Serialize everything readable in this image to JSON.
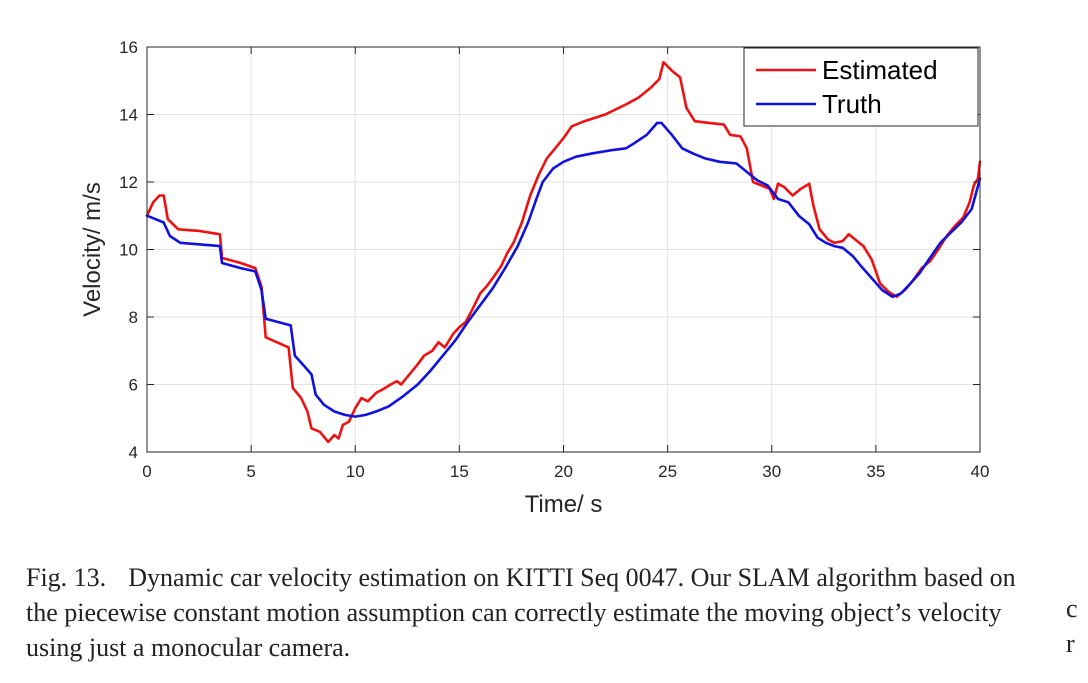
{
  "chart_data": {
    "type": "line",
    "xlabel": "Time/ s",
    "ylabel": "Velocity/ m/s",
    "xlim": [
      0,
      40
    ],
    "ylim": [
      4,
      16
    ],
    "xticks": [
      0,
      5,
      10,
      15,
      20,
      25,
      30,
      35,
      40
    ],
    "yticks": [
      4,
      6,
      8,
      10,
      12,
      14,
      16
    ],
    "grid": true,
    "legend_position": "top-right",
    "series": [
      {
        "name": "Estimated",
        "color": "#ee1111",
        "points": [
          [
            0,
            11.0
          ],
          [
            0.3,
            11.4
          ],
          [
            0.6,
            11.6
          ],
          [
            0.8,
            11.6
          ],
          [
            1.0,
            10.9
          ],
          [
            1.5,
            10.6
          ],
          [
            2.5,
            10.55
          ],
          [
            3.5,
            10.45
          ],
          [
            3.6,
            9.75
          ],
          [
            4.5,
            9.6
          ],
          [
            5.2,
            9.45
          ],
          [
            5.5,
            8.9
          ],
          [
            5.7,
            7.4
          ],
          [
            6.8,
            7.1
          ],
          [
            7.0,
            5.9
          ],
          [
            7.4,
            5.6
          ],
          [
            7.7,
            5.2
          ],
          [
            7.9,
            4.7
          ],
          [
            8.3,
            4.6
          ],
          [
            8.7,
            4.3
          ],
          [
            9.0,
            4.5
          ],
          [
            9.2,
            4.4
          ],
          [
            9.4,
            4.8
          ],
          [
            9.7,
            4.9
          ],
          [
            10.0,
            5.3
          ],
          [
            10.3,
            5.6
          ],
          [
            10.6,
            5.5
          ],
          [
            11.0,
            5.75
          ],
          [
            11.3,
            5.85
          ],
          [
            11.7,
            6.0
          ],
          [
            12.0,
            6.1
          ],
          [
            12.2,
            6.0
          ],
          [
            12.6,
            6.3
          ],
          [
            13.0,
            6.6
          ],
          [
            13.3,
            6.85
          ],
          [
            13.7,
            7.0
          ],
          [
            14.0,
            7.25
          ],
          [
            14.3,
            7.1
          ],
          [
            14.7,
            7.5
          ],
          [
            15.0,
            7.7
          ],
          [
            15.3,
            7.85
          ],
          [
            15.6,
            8.2
          ],
          [
            16.0,
            8.7
          ],
          [
            16.3,
            8.9
          ],
          [
            16.6,
            9.15
          ],
          [
            17.0,
            9.5
          ],
          [
            17.3,
            9.9
          ],
          [
            17.6,
            10.2
          ],
          [
            18.0,
            10.8
          ],
          [
            18.4,
            11.6
          ],
          [
            18.8,
            12.2
          ],
          [
            19.2,
            12.7
          ],
          [
            19.6,
            13.0
          ],
          [
            20.0,
            13.3
          ],
          [
            20.4,
            13.65
          ],
          [
            21.0,
            13.8
          ],
          [
            22.0,
            14.0
          ],
          [
            23.0,
            14.3
          ],
          [
            23.6,
            14.5
          ],
          [
            24.2,
            14.8
          ],
          [
            24.6,
            15.05
          ],
          [
            24.8,
            15.55
          ],
          [
            25.2,
            15.3
          ],
          [
            25.6,
            15.1
          ],
          [
            25.9,
            14.2
          ],
          [
            26.3,
            13.8
          ],
          [
            27.0,
            13.75
          ],
          [
            27.7,
            13.7
          ],
          [
            28.0,
            13.4
          ],
          [
            28.5,
            13.35
          ],
          [
            28.8,
            13.0
          ],
          [
            29.1,
            12.0
          ],
          [
            29.5,
            11.9
          ],
          [
            29.9,
            11.8
          ],
          [
            30.1,
            11.5
          ],
          [
            30.3,
            11.95
          ],
          [
            30.6,
            11.85
          ],
          [
            31.0,
            11.6
          ],
          [
            31.4,
            11.8
          ],
          [
            31.8,
            11.95
          ],
          [
            32.0,
            11.3
          ],
          [
            32.3,
            10.6
          ],
          [
            32.7,
            10.3
          ],
          [
            33.0,
            10.2
          ],
          [
            33.4,
            10.25
          ],
          [
            33.7,
            10.45
          ],
          [
            34.0,
            10.3
          ],
          [
            34.4,
            10.1
          ],
          [
            34.8,
            9.7
          ],
          [
            35.2,
            9.0
          ],
          [
            35.6,
            8.75
          ],
          [
            36.0,
            8.6
          ],
          [
            36.4,
            8.8
          ],
          [
            36.8,
            9.1
          ],
          [
            37.2,
            9.45
          ],
          [
            37.6,
            9.65
          ],
          [
            38.0,
            10.0
          ],
          [
            38.4,
            10.4
          ],
          [
            38.8,
            10.7
          ],
          [
            39.2,
            10.95
          ],
          [
            39.5,
            11.4
          ],
          [
            39.7,
            11.9
          ],
          [
            39.9,
            12.1
          ],
          [
            40.0,
            12.6
          ]
        ]
      },
      {
        "name": "Truth",
        "color": "#1111dd",
        "points": [
          [
            0,
            11.0
          ],
          [
            0.4,
            10.9
          ],
          [
            0.8,
            10.8
          ],
          [
            1.1,
            10.4
          ],
          [
            1.6,
            10.2
          ],
          [
            3.5,
            10.1
          ],
          [
            3.6,
            9.6
          ],
          [
            4.5,
            9.45
          ],
          [
            5.2,
            9.35
          ],
          [
            5.5,
            8.8
          ],
          [
            5.7,
            7.95
          ],
          [
            6.9,
            7.75
          ],
          [
            7.1,
            6.85
          ],
          [
            7.4,
            6.65
          ],
          [
            7.9,
            6.3
          ],
          [
            8.1,
            5.7
          ],
          [
            8.5,
            5.4
          ],
          [
            9.0,
            5.2
          ],
          [
            9.5,
            5.1
          ],
          [
            10.0,
            5.05
          ],
          [
            10.5,
            5.1
          ],
          [
            11.0,
            5.2
          ],
          [
            11.6,
            5.35
          ],
          [
            12.3,
            5.65
          ],
          [
            13.0,
            6.0
          ],
          [
            13.6,
            6.4
          ],
          [
            14.2,
            6.85
          ],
          [
            14.8,
            7.3
          ],
          [
            15.4,
            7.85
          ],
          [
            16.0,
            8.35
          ],
          [
            16.6,
            8.85
          ],
          [
            17.2,
            9.45
          ],
          [
            17.8,
            10.1
          ],
          [
            18.3,
            10.8
          ],
          [
            18.7,
            11.5
          ],
          [
            19.0,
            12.0
          ],
          [
            19.5,
            12.4
          ],
          [
            20.0,
            12.6
          ],
          [
            20.6,
            12.75
          ],
          [
            21.4,
            12.85
          ],
          [
            22.4,
            12.95
          ],
          [
            23.0,
            13.0
          ],
          [
            23.4,
            13.15
          ],
          [
            24.0,
            13.4
          ],
          [
            24.5,
            13.75
          ],
          [
            24.7,
            13.75
          ],
          [
            25.2,
            13.4
          ],
          [
            25.7,
            13.0
          ],
          [
            26.2,
            12.85
          ],
          [
            26.8,
            12.7
          ],
          [
            27.5,
            12.6
          ],
          [
            28.3,
            12.55
          ],
          [
            28.8,
            12.3
          ],
          [
            29.3,
            12.05
          ],
          [
            29.8,
            11.9
          ],
          [
            30.3,
            11.5
          ],
          [
            30.8,
            11.4
          ],
          [
            31.3,
            11.0
          ],
          [
            31.8,
            10.75
          ],
          [
            32.2,
            10.35
          ],
          [
            32.6,
            10.2
          ],
          [
            33.0,
            10.1
          ],
          [
            33.4,
            10.05
          ],
          [
            33.9,
            9.8
          ],
          [
            34.3,
            9.5
          ],
          [
            34.8,
            9.15
          ],
          [
            35.3,
            8.8
          ],
          [
            35.8,
            8.6
          ],
          [
            36.2,
            8.7
          ],
          [
            36.6,
            8.95
          ],
          [
            37.1,
            9.3
          ],
          [
            37.6,
            9.75
          ],
          [
            38.1,
            10.2
          ],
          [
            38.6,
            10.5
          ],
          [
            39.1,
            10.8
          ],
          [
            39.6,
            11.2
          ],
          [
            40.0,
            12.1
          ]
        ]
      }
    ]
  },
  "caption": {
    "number": "Fig. 13.",
    "text": "Dynamic car velocity estimation on KITTI Seq 0047. Our SLAM algorithm based on the piecewise constant motion assumption can correctly estimate the moving object’s velocity using just a monocular camera."
  },
  "side_fragments": [
    "c",
    "r"
  ]
}
